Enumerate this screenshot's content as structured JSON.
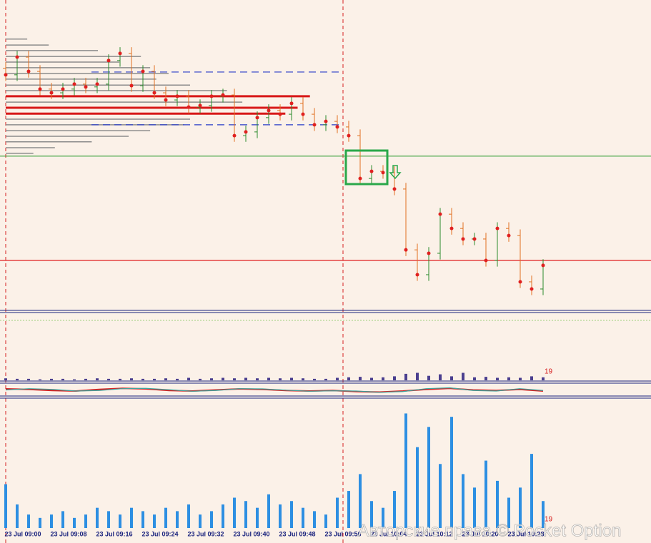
{
  "chart_data": [
    {
      "type": "candlestick",
      "open": [
        78.0,
        75.9,
        81.6,
        77.0,
        71.3,
        70.1,
        71.3,
        72.9,
        72.0,
        72.9,
        80.5,
        82.8,
        72.4,
        77.0,
        70.1,
        67.8,
        69.0,
        65.5,
        66.0,
        69.0,
        69.4,
        56.3,
        57.5,
        62.1,
        64.4,
        63.2,
        66.7,
        63.2,
        59.8,
        60.9,
        59.1,
        56.3,
        42.5,
        44.8,
        44.4,
        39.1,
        19.5,
        11.5,
        18.4,
        31.0,
        26.4,
        23.0,
        23.0,
        16.1,
        26.4,
        24.1,
        9.2,
        6.9
      ],
      "high": [
        80.0,
        83.6,
        83.6,
        79.0,
        73.3,
        73.3,
        74.9,
        74.9,
        74.9,
        82.5,
        84.8,
        84.8,
        79.0,
        79.0,
        72.1,
        71.0,
        71.0,
        68.0,
        71.0,
        71.4,
        71.4,
        59.5,
        64.1,
        66.4,
        66.4,
        68.7,
        68.7,
        65.2,
        62.9,
        62.9,
        61.1,
        58.3,
        46.8,
        46.8,
        46.4,
        41.1,
        21.5,
        20.4,
        33.0,
        33.0,
        28.4,
        25.0,
        25.0,
        28.4,
        28.4,
        26.1,
        11.2,
        16.5
      ],
      "low": [
        73.9,
        73.9,
        75.0,
        69.3,
        68.1,
        68.1,
        69.3,
        70.0,
        70.0,
        70.9,
        78.5,
        70.4,
        70.4,
        68.1,
        65.8,
        65.8,
        63.5,
        63.5,
        64.0,
        67.0,
        54.3,
        54.3,
        55.5,
        60.1,
        61.2,
        61.2,
        61.2,
        57.8,
        57.8,
        57.1,
        54.3,
        40.5,
        40.5,
        42.4,
        37.1,
        17.5,
        9.5,
        9.5,
        16.4,
        24.4,
        21.0,
        21.0,
        14.1,
        14.1,
        22.1,
        7.2,
        4.9,
        4.9
      ],
      "close": [
        75.9,
        81.6,
        77.0,
        71.3,
        70.1,
        71.3,
        72.9,
        72.0,
        72.9,
        80.5,
        82.8,
        72.4,
        77.0,
        70.1,
        67.8,
        69.0,
        65.5,
        66.0,
        69.0,
        69.4,
        56.3,
        57.5,
        62.1,
        64.4,
        63.2,
        66.7,
        63.2,
        59.8,
        60.9,
        59.1,
        56.3,
        42.5,
        44.8,
        44.4,
        39.1,
        19.5,
        11.5,
        18.4,
        31.0,
        26.4,
        23.0,
        23.0,
        16.1,
        26.4,
        24.1,
        9.2,
        6.9,
        14.5
      ],
      "ylim": [
        0,
        100
      ],
      "up_color": "#2b8a2b",
      "down_color": "#e07020",
      "levels": [
        {
          "value": 76.8,
          "color": "#2a3cc8",
          "style": "dashed"
        },
        {
          "value": 59.8,
          "color": "#2a3cc8",
          "style": "dashed"
        },
        {
          "value": 49.7,
          "color": "#3aa03a",
          "style": "solid"
        },
        {
          "value": 16.1,
          "color": "#e02020",
          "style": "solid"
        }
      ],
      "volume_profile": {
        "levels": [
          87.4,
          85.5,
          83.7,
          81.8,
          80.0,
          78.2,
          76.3,
          74.5,
          72.6,
          70.8,
          69.0,
          67.1,
          65.3,
          63.4,
          61.6,
          59.8,
          57.9,
          56.1,
          54.3,
          52.4,
          50.6
        ],
        "values": [
          7,
          14,
          30,
          44,
          37,
          47,
          53,
          49,
          60,
          72,
          99,
          77,
          95,
          91,
          60,
          58,
          47,
          40,
          28,
          16,
          9
        ],
        "colors": [
          "#8c8c8c",
          "#8c8c8c",
          "#8c8c8c",
          "#8c8c8c",
          "#8c8c8c",
          "#8c8c8c",
          "#8c8c8c",
          "#8c8c8c",
          "#8c8c8c",
          "#8c8c8c",
          "#d81818",
          "#8c8c8c",
          "#d81818",
          "#d81818",
          "#8c8c8c",
          "#8c8c8c",
          "#8c8c8c",
          "#8c8c8c",
          "#8c8c8c",
          "#8c8c8c",
          "#8c8c8c"
        ],
        "xlim": [
          0,
          100
        ]
      }
    },
    {
      "type": "bar",
      "values": [
        4,
        3,
        3,
        2,
        3,
        3,
        2,
        3,
        4,
        3,
        3,
        4,
        3,
        3,
        4,
        3,
        5,
        3,
        4,
        5,
        4,
        5,
        4,
        5,
        4,
        5,
        4,
        3,
        3,
        5,
        6,
        7,
        5,
        6,
        8,
        13,
        15,
        9,
        12,
        8,
        15,
        6,
        7,
        5,
        6,
        5,
        8,
        6
      ],
      "ylim": [
        0,
        20
      ],
      "color": "#4b3f8f",
      "last_label": 19
    },
    {
      "type": "line",
      "series": [
        {
          "color": "#d62020",
          "values": [
            60,
            55,
            45,
            40,
            55,
            65,
            60,
            45,
            40,
            50,
            60,
            55,
            45,
            40,
            45,
            35,
            30,
            40,
            55,
            65,
            50,
            45,
            55,
            40
          ]
        },
        {
          "color": "#3aa6a0",
          "values": [
            50,
            62,
            55,
            40,
            45,
            62,
            65,
            52,
            38,
            45,
            62,
            60,
            48,
            38,
            42,
            40,
            28,
            35,
            62,
            70,
            45,
            40,
            62,
            45
          ]
        }
      ],
      "ylim": [
        0,
        100
      ]
    },
    {
      "type": "bar",
      "values": [
        65,
        35,
        20,
        15,
        20,
        25,
        15,
        20,
        30,
        25,
        20,
        30,
        25,
        20,
        30,
        25,
        35,
        20,
        25,
        35,
        45,
        40,
        30,
        50,
        35,
        40,
        30,
        25,
        20,
        45,
        55,
        80,
        40,
        30,
        55,
        170,
        120,
        150,
        95,
        165,
        80,
        60,
        100,
        70,
        45,
        60,
        110,
        40
      ],
      "ylim": [
        0,
        180
      ],
      "color": "#2d8fe2",
      "last_label": 19,
      "time_labels": [
        "23 Jul 09:00",
        "23 Jul 09:08",
        "23 Jul 09:16",
        "23 Jul 09:24",
        "23 Jul 09:32",
        "23 Jul 09:40",
        "23 Jul 09:48",
        "23 Jul 09:56",
        "23 Jul 10:04",
        "23 Jul 10:12",
        "23 Jul 10:20",
        "23 Jul 10:28"
      ]
    }
  ],
  "watermark": "Авторские права © Pocket Option"
}
